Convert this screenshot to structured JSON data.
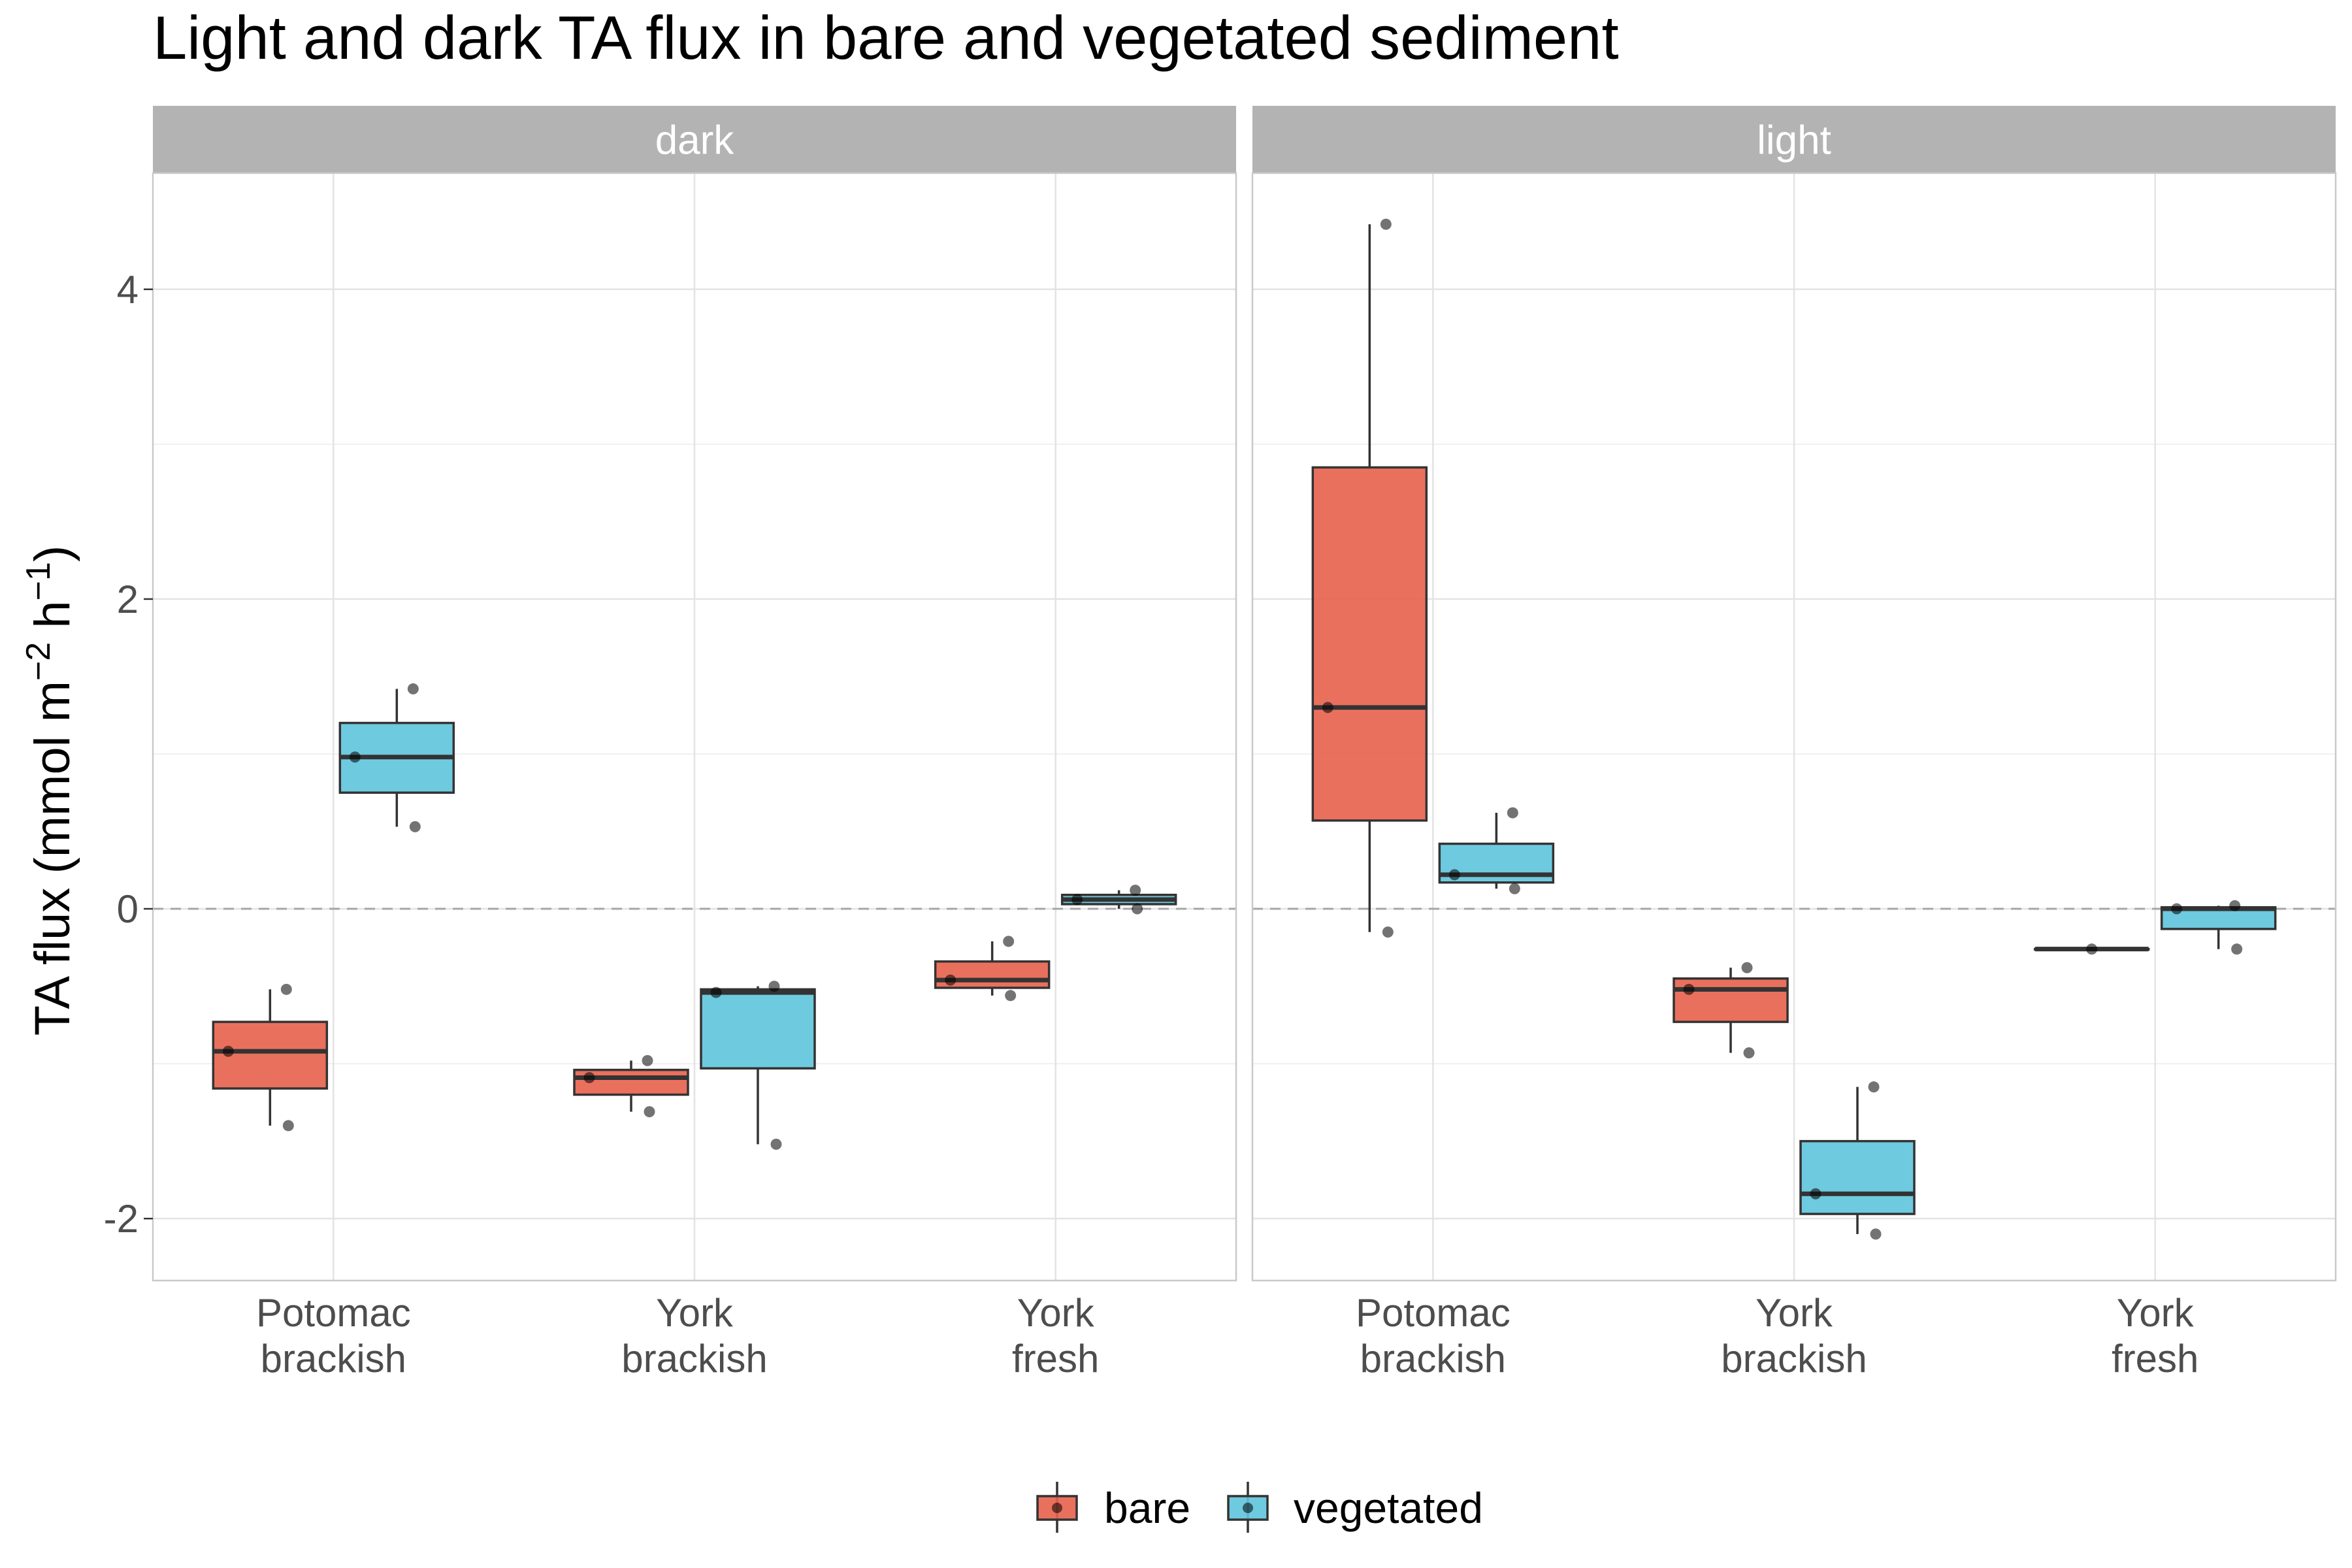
{
  "chart_data": {
    "type": "box",
    "title": "Light and dark TA flux in bare and vegetated sediment",
    "ylabel": {
      "base": "TA flux (mmol m",
      "sup1": "−2",
      "mid": " h",
      "sup2": "−1",
      "end": ")"
    },
    "xlabel": "",
    "ylim": [
      -2.4,
      4.75
    ],
    "yticks": [
      -2,
      0,
      2,
      4
    ],
    "ytick_labels": [
      "-2",
      "0",
      "2",
      "4"
    ],
    "reference_line": 0,
    "categories": [
      [
        "Potomac",
        "brackish"
      ],
      [
        "York",
        "brackish"
      ],
      [
        "York",
        "fresh"
      ]
    ],
    "series": [
      {
        "name": "bare",
        "color": "#E8604C"
      },
      {
        "name": "vegetated",
        "color": "#5EC4DC"
      }
    ],
    "legend_position": "bottom",
    "grid": true,
    "panels": [
      {
        "label": "dark",
        "groups": [
          {
            "category": 0,
            "series": 0,
            "whisker_low": -1.4,
            "q1": -1.16,
            "median": -0.92,
            "q3": -0.73,
            "whisker_high": -0.52,
            "points": [
              -0.52,
              -0.92,
              -1.4
            ]
          },
          {
            "category": 0,
            "series": 1,
            "whisker_low": 0.53,
            "q1": 0.75,
            "median": 0.98,
            "q3": 1.2,
            "whisker_high": 1.42,
            "points": [
              1.42,
              0.98,
              0.53
            ]
          },
          {
            "category": 1,
            "series": 0,
            "whisker_low": -1.31,
            "q1": -1.2,
            "median": -1.09,
            "q3": -1.04,
            "whisker_high": -0.98,
            "points": [
              -0.98,
              -1.09,
              -1.31
            ]
          },
          {
            "category": 1,
            "series": 1,
            "whisker_low": -1.52,
            "q1": -1.03,
            "median": -0.54,
            "q3": -0.52,
            "whisker_high": -0.5,
            "points": [
              -0.5,
              -0.54,
              -1.52
            ]
          },
          {
            "category": 2,
            "series": 0,
            "whisker_low": -0.56,
            "q1": -0.51,
            "median": -0.46,
            "q3": -0.34,
            "whisker_high": -0.21,
            "points": [
              -0.21,
              -0.46,
              -0.56
            ]
          },
          {
            "category": 2,
            "series": 1,
            "whisker_low": 0.0,
            "q1": 0.03,
            "median": 0.06,
            "q3": 0.09,
            "whisker_high": 0.12,
            "points": [
              0.12,
              0.06,
              0.0
            ]
          }
        ]
      },
      {
        "label": "light",
        "groups": [
          {
            "category": 0,
            "series": 0,
            "whisker_low": -0.15,
            "q1": 0.57,
            "median": 1.3,
            "q3": 2.85,
            "whisker_high": 4.42,
            "points": [
              4.42,
              1.3,
              -0.15
            ]
          },
          {
            "category": 0,
            "series": 1,
            "whisker_low": 0.13,
            "q1": 0.17,
            "median": 0.22,
            "q3": 0.42,
            "whisker_high": 0.62,
            "points": [
              0.62,
              0.22,
              0.13
            ]
          },
          {
            "category": 1,
            "series": 0,
            "whisker_low": -0.93,
            "q1": -0.73,
            "median": -0.52,
            "q3": -0.45,
            "whisker_high": -0.38,
            "points": [
              -0.38,
              -0.52,
              -0.93
            ]
          },
          {
            "category": 1,
            "series": 1,
            "whisker_low": -2.1,
            "q1": -1.97,
            "median": -1.84,
            "q3": -1.5,
            "whisker_high": -1.15,
            "points": [
              -1.15,
              -1.84,
              -2.1
            ]
          },
          {
            "category": 2,
            "series": 0,
            "whisker_low": -0.26,
            "q1": -0.26,
            "median": -0.26,
            "q3": -0.26,
            "whisker_high": -0.26,
            "points": [
              -0.26
            ]
          },
          {
            "category": 2,
            "series": 1,
            "whisker_low": -0.26,
            "q1": -0.13,
            "median": 0.0,
            "q3": 0.01,
            "whisker_high": 0.02,
            "points": [
              0.02,
              0.0,
              -0.26
            ]
          }
        ]
      }
    ]
  }
}
